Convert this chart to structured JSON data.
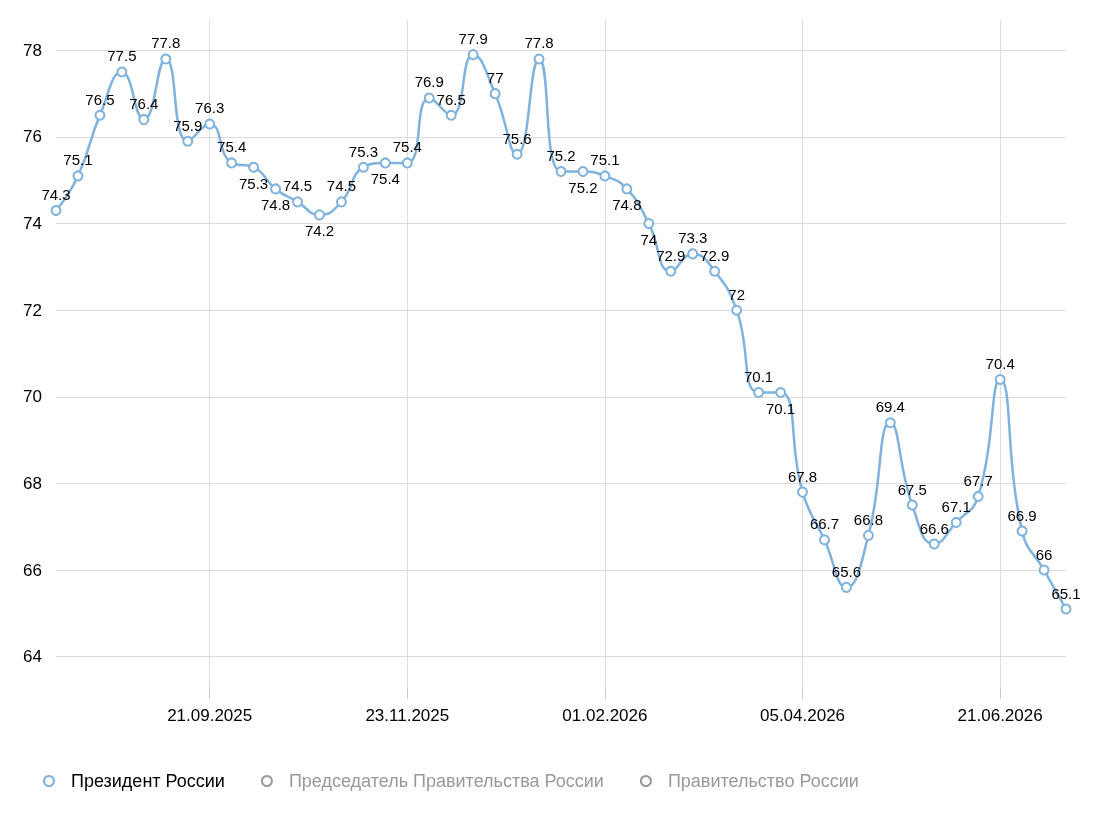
{
  "chart_data": {
    "type": "line",
    "categories": [
      null,
      null,
      null,
      null,
      null,
      null,
      null,
      "21.09.2025",
      null,
      null,
      null,
      null,
      null,
      null,
      null,
      null,
      "23.11.2025",
      null,
      null,
      null,
      null,
      null,
      null,
      null,
      null,
      "01.02.2026",
      null,
      null,
      null,
      null,
      null,
      null,
      null,
      null,
      "05.04.2026",
      null,
      null,
      null,
      null,
      null,
      null,
      null,
      null,
      "21.06.2026",
      null,
      null,
      null
    ],
    "series": [
      {
        "name": "Президент России",
        "color": "#7fb2dc",
        "values": [
          74.3,
          75.1,
          76.5,
          77.5,
          76.4,
          77.8,
          75.9,
          76.3,
          75.4,
          75.3,
          74.8,
          74.5,
          74.2,
          74.5,
          75.3,
          75.4,
          75.4,
          76.9,
          76.5,
          77.9,
          77,
          75.6,
          77.8,
          75.2,
          75.2,
          75.1,
          74.8,
          74,
          72.9,
          73.3,
          72.9,
          72,
          70.1,
          70.1,
          67.8,
          66.7,
          65.6,
          66.8,
          69.4,
          67.5,
          66.6,
          67.1,
          67.7,
          70.4,
          66.9,
          66,
          65.1
        ]
      },
      {
        "name": "Председатель Правительства России",
        "color": "#999999",
        "values": [
          null,
          null,
          null,
          null,
          null,
          null,
          null,
          null,
          null,
          null,
          null,
          null,
          null,
          null,
          null,
          null,
          null,
          null,
          null,
          null,
          null,
          null,
          null,
          null,
          null,
          null,
          null,
          null,
          null,
          null,
          null,
          null,
          null,
          null,
          null,
          null,
          null,
          null,
          null,
          null,
          null,
          null,
          null,
          null,
          null,
          null,
          null
        ]
      },
      {
        "name": "Правительство России",
        "color": "#999999",
        "values": [
          null,
          null,
          null,
          null,
          null,
          null,
          null,
          null,
          null,
          null,
          null,
          null,
          null,
          null,
          null,
          null,
          null,
          null,
          null,
          null,
          null,
          null,
          null,
          null,
          null,
          null,
          null,
          null,
          null,
          null,
          null,
          null,
          null,
          null,
          null,
          null,
          null,
          null,
          null,
          null,
          null,
          null,
          null,
          null,
          null,
          null,
          null
        ]
      }
    ],
    "ylim": [
      63.3,
      78.7
    ],
    "yticks": [
      64,
      66,
      68,
      70,
      72,
      74,
      76,
      78
    ],
    "grid": true,
    "legend": "bottom",
    "marker": "circle",
    "line_style": "solid",
    "data_labels": true
  }
}
